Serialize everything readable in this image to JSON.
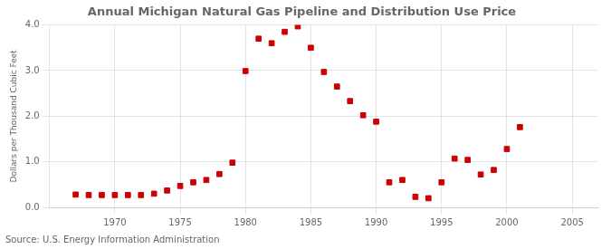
{
  "chart_data": {
    "type": "scatter",
    "title": "Annual Michigan Natural Gas Pipeline and Distribution Use Price",
    "ylabel": "Dollars per Thousand Cubic Feet",
    "annotation": "Source: U.S. Energy Information Administration",
    "x": [
      1967,
      1968,
      1969,
      1970,
      1971,
      1972,
      1973,
      1974,
      1975,
      1976,
      1977,
      1978,
      1979,
      1980,
      1981,
      1982,
      1983,
      1984,
      1985,
      1986,
      1987,
      1988,
      1989,
      1990,
      1991,
      1992,
      1993,
      1994,
      1995,
      1996,
      1997,
      1998,
      1999,
      2000,
      2001
    ],
    "values": [
      0.28,
      0.27,
      0.27,
      0.27,
      0.27,
      0.27,
      0.3,
      0.37,
      0.47,
      0.55,
      0.6,
      0.73,
      0.98,
      2.99,
      3.7,
      3.6,
      3.85,
      3.97,
      3.5,
      2.97,
      2.65,
      2.33,
      2.02,
      1.88,
      0.55,
      0.6,
      0.23,
      0.2,
      0.55,
      1.07,
      1.04,
      0.72,
      0.82,
      1.28,
      1.76
    ],
    "color": "#cc0000",
    "marker": "square",
    "xlim": [
      1965,
      2007
    ],
    "xticks": [
      1970,
      1975,
      1980,
      1985,
      1990,
      1995,
      2000,
      2005
    ],
    "ylim": [
      0.0,
      4.0
    ],
    "yticks": [
      {
        "value": 0.0,
        "label": "0.0"
      },
      {
        "value": 1.0,
        "label": "1.0"
      },
      {
        "value": 2.0,
        "label": "2.0"
      },
      {
        "value": 3.0,
        "label": "3.0"
      },
      {
        "value": 4.0,
        "label": "4.0"
      }
    ],
    "grid": true
  }
}
